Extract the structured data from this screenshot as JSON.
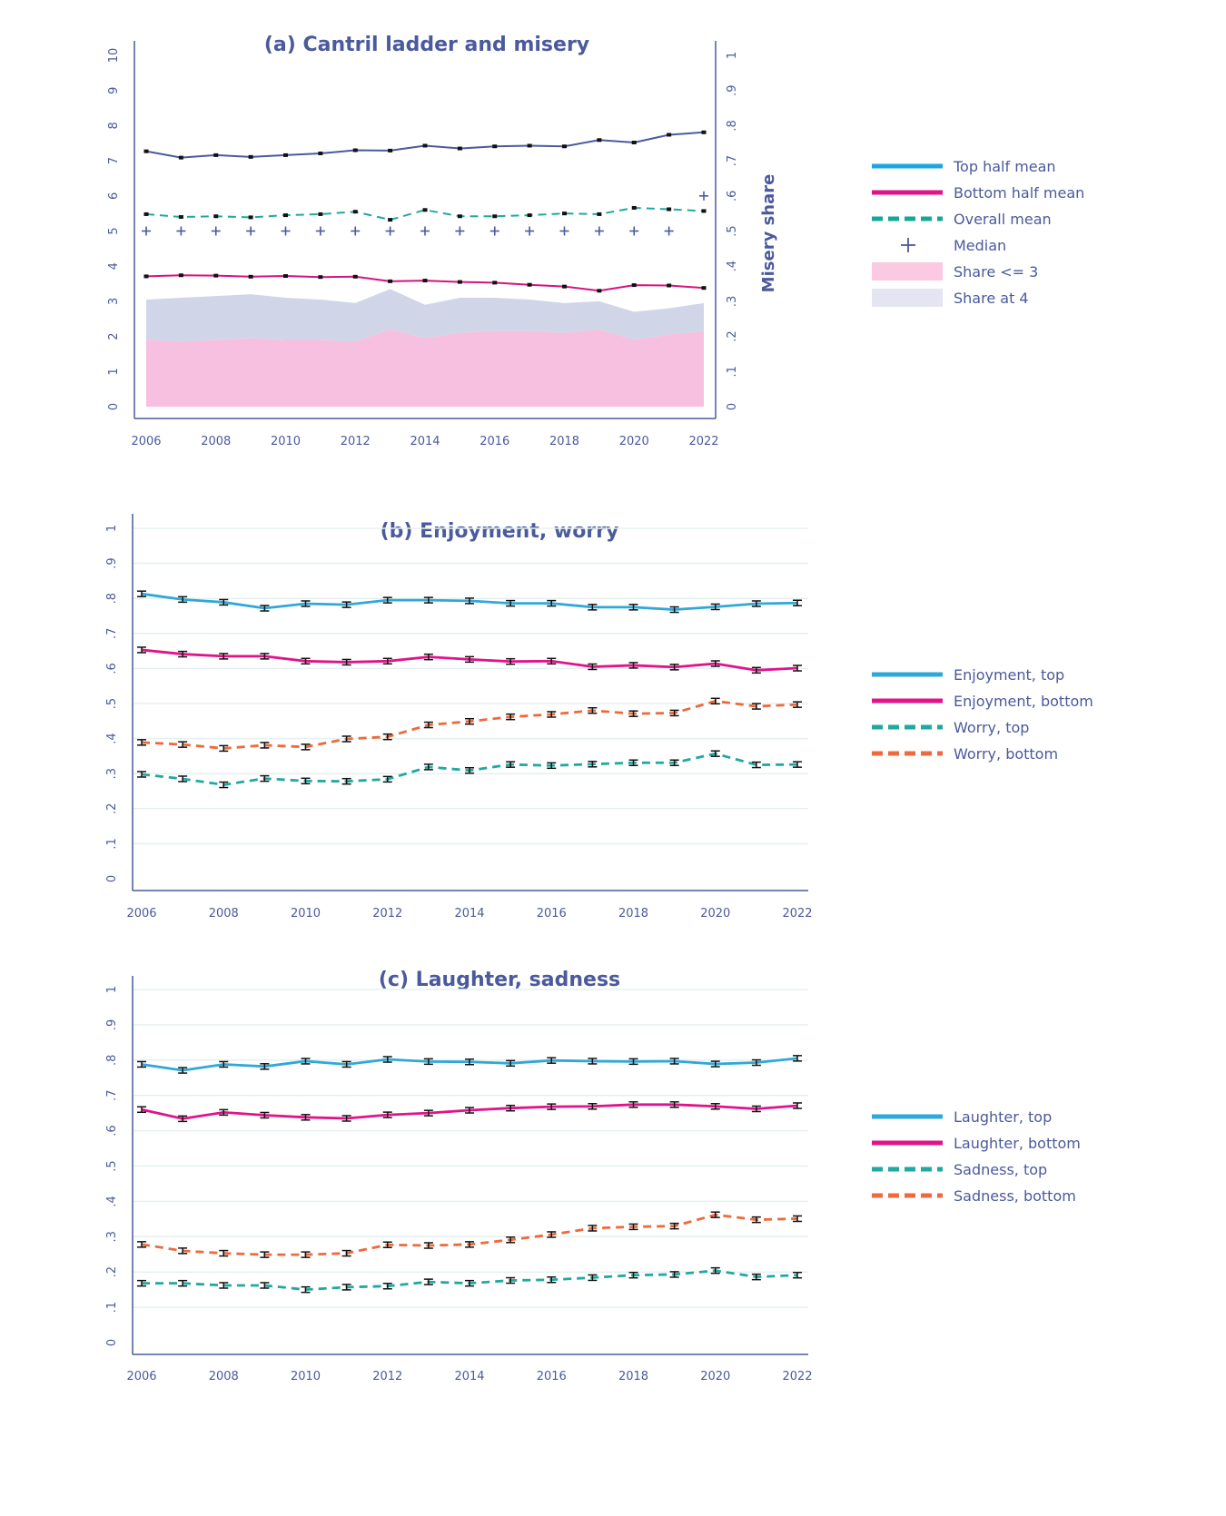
{
  "chart_data": [
    {
      "id": "a",
      "type": "line",
      "title": "(a) Cantril ladder and misery",
      "xlabel": "",
      "ylabel": "",
      "y2label": "Misery share",
      "x": [
        2006,
        2007,
        2008,
        2009,
        2010,
        2011,
        2012,
        2013,
        2014,
        2015,
        2016,
        2017,
        2018,
        2019,
        2020,
        2021,
        2022
      ],
      "x_ticks": [
        2006,
        2008,
        2010,
        2012,
        2014,
        2016,
        2018,
        2020,
        2022
      ],
      "ylim": [
        0,
        10
      ],
      "y_ticks": [
        "0",
        "1",
        "2",
        "3",
        "4",
        "5",
        "6",
        "7",
        "8",
        "9",
        "10"
      ],
      "y2lim": [
        0,
        1
      ],
      "y2_ticks": [
        "0",
        ".1",
        ".2",
        ".3",
        ".4",
        ".5",
        ".6",
        ".7",
        ".8",
        ".9",
        "1"
      ],
      "grid": false,
      "legend_position": "right",
      "series": [
        {
          "name": "Top half mean",
          "axis": "left",
          "style": "solid",
          "color": "#4a5a9c",
          "legend_color": "#1aa6df",
          "values": [
            7.27,
            7.09,
            7.16,
            7.11,
            7.16,
            7.21,
            7.3,
            7.29,
            7.43,
            7.35,
            7.41,
            7.43,
            7.41,
            7.59,
            7.52,
            7.74,
            7.81
          ]
        },
        {
          "name": "Bottom half mean",
          "axis": "left",
          "style": "solid",
          "color": "#d6137f",
          "legend_color": "#e0138a",
          "values": [
            3.71,
            3.74,
            3.73,
            3.7,
            3.72,
            3.69,
            3.7,
            3.57,
            3.59,
            3.55,
            3.53,
            3.47,
            3.42,
            3.3,
            3.46,
            3.45,
            3.38
          ]
        },
        {
          "name": "Overall mean",
          "axis": "left",
          "style": "dashed",
          "color": "#1fa9a0",
          "legend_color": "#14a89a",
          "values": [
            5.48,
            5.4,
            5.42,
            5.39,
            5.45,
            5.48,
            5.55,
            5.32,
            5.6,
            5.42,
            5.42,
            5.45,
            5.5,
            5.48,
            5.66,
            5.62,
            5.57
          ]
        },
        {
          "name": "Median",
          "axis": "left",
          "style": "marker-plus",
          "color": "#4a5a9c",
          "legend_color": "#4a5a9c",
          "values": [
            5,
            5,
            5,
            5,
            5,
            5,
            5,
            5,
            5,
            5,
            5,
            5,
            5,
            5,
            5,
            5,
            6
          ]
        }
      ],
      "areas": [
        {
          "name": "Share <= 3",
          "axis": "right",
          "color": "#f7bfe0",
          "legend_color": "#fcc9e2",
          "values": [
            0.19,
            0.185,
            0.19,
            0.195,
            0.19,
            0.19,
            0.185,
            0.22,
            0.195,
            0.21,
            0.215,
            0.215,
            0.21,
            0.22,
            0.19,
            0.205,
            0.215
          ]
        },
        {
          "name": "Share at 4",
          "axis": "right",
          "color": "#d0d6e8",
          "legend_color": "#e4e5f3",
          "cumulative_top": [
            0.305,
            0.31,
            0.315,
            0.32,
            0.31,
            0.305,
            0.295,
            0.335,
            0.29,
            0.31,
            0.31,
            0.305,
            0.295,
            0.3,
            0.27,
            0.28,
            0.295
          ]
        }
      ]
    },
    {
      "id": "b",
      "type": "line",
      "title": "(b) Enjoyment, worry",
      "xlabel": "",
      "ylabel": "",
      "x": [
        2006,
        2007,
        2008,
        2009,
        2010,
        2011,
        2012,
        2013,
        2014,
        2015,
        2016,
        2017,
        2018,
        2019,
        2020,
        2021,
        2022
      ],
      "x_ticks": [
        2006,
        2008,
        2010,
        2012,
        2014,
        2016,
        2018,
        2020,
        2022
      ],
      "ylim": [
        0,
        1
      ],
      "y_ticks": [
        "0",
        ".1",
        ".2",
        ".3",
        ".4",
        ".5",
        ".6",
        ".7",
        ".8",
        ".9",
        "1"
      ],
      "grid": true,
      "legend_position": "right",
      "series": [
        {
          "name": "Enjoyment, top",
          "style": "solid",
          "color": "#2fa8d8",
          "values": [
            0.813,
            0.797,
            0.789,
            0.772,
            0.785,
            0.782,
            0.795,
            0.795,
            0.793,
            0.786,
            0.786,
            0.775,
            0.775,
            0.768,
            0.776,
            0.785,
            0.787
          ]
        },
        {
          "name": "Enjoyment, bottom",
          "style": "solid",
          "color": "#e0138a",
          "values": [
            0.653,
            0.641,
            0.635,
            0.635,
            0.621,
            0.618,
            0.621,
            0.633,
            0.626,
            0.62,
            0.621,
            0.605,
            0.609,
            0.604,
            0.614,
            0.595,
            0.601
          ]
        },
        {
          "name": "Worry, top",
          "style": "dashed",
          "color": "#1fa9a0",
          "values": [
            0.298,
            0.285,
            0.268,
            0.286,
            0.279,
            0.278,
            0.284,
            0.319,
            0.309,
            0.326,
            0.323,
            0.327,
            0.331,
            0.331,
            0.357,
            0.325,
            0.326
          ]
        },
        {
          "name": "Worry, bottom",
          "style": "dashed",
          "color": "#ec6a3d",
          "values": [
            0.389,
            0.383,
            0.372,
            0.381,
            0.376,
            0.399,
            0.405,
            0.439,
            0.449,
            0.462,
            0.469,
            0.48,
            0.471,
            0.473,
            0.507,
            0.492,
            0.497
          ]
        }
      ]
    },
    {
      "id": "c",
      "type": "line",
      "title": "(c) Laughter, sadness",
      "xlabel": "",
      "ylabel": "",
      "x": [
        2006,
        2007,
        2008,
        2009,
        2010,
        2011,
        2012,
        2013,
        2014,
        2015,
        2016,
        2017,
        2018,
        2019,
        2020,
        2021,
        2022
      ],
      "x_ticks": [
        2006,
        2008,
        2010,
        2012,
        2014,
        2016,
        2018,
        2020,
        2022
      ],
      "ylim": [
        0,
        1
      ],
      "y_ticks": [
        "0",
        ".1",
        ".2",
        ".3",
        ".4",
        ".5",
        ".6",
        ".7",
        ".8",
        ".9",
        "1"
      ],
      "grid": true,
      "legend_position": "right",
      "series": [
        {
          "name": "Laughter, top",
          "style": "solid",
          "color": "#2fa8d8",
          "values": [
            0.788,
            0.771,
            0.788,
            0.782,
            0.797,
            0.788,
            0.802,
            0.796,
            0.795,
            0.791,
            0.799,
            0.797,
            0.796,
            0.797,
            0.789,
            0.793,
            0.805
          ]
        },
        {
          "name": "Laughter, bottom",
          "style": "solid",
          "color": "#e0138a",
          "values": [
            0.66,
            0.634,
            0.652,
            0.644,
            0.638,
            0.635,
            0.645,
            0.65,
            0.658,
            0.664,
            0.668,
            0.669,
            0.674,
            0.674,
            0.669,
            0.662,
            0.671
          ]
        },
        {
          "name": "Sadness, top",
          "style": "dashed",
          "color": "#1fa9a0",
          "values": [
            0.168,
            0.168,
            0.162,
            0.162,
            0.15,
            0.157,
            0.16,
            0.172,
            0.168,
            0.176,
            0.178,
            0.184,
            0.191,
            0.193,
            0.204,
            0.186,
            0.191
          ]
        },
        {
          "name": "Sadness, bottom",
          "style": "dashed",
          "color": "#ec6a3d",
          "values": [
            0.278,
            0.26,
            0.253,
            0.249,
            0.249,
            0.253,
            0.277,
            0.275,
            0.278,
            0.291,
            0.306,
            0.324,
            0.328,
            0.33,
            0.362,
            0.348,
            0.351
          ]
        }
      ]
    }
  ]
}
